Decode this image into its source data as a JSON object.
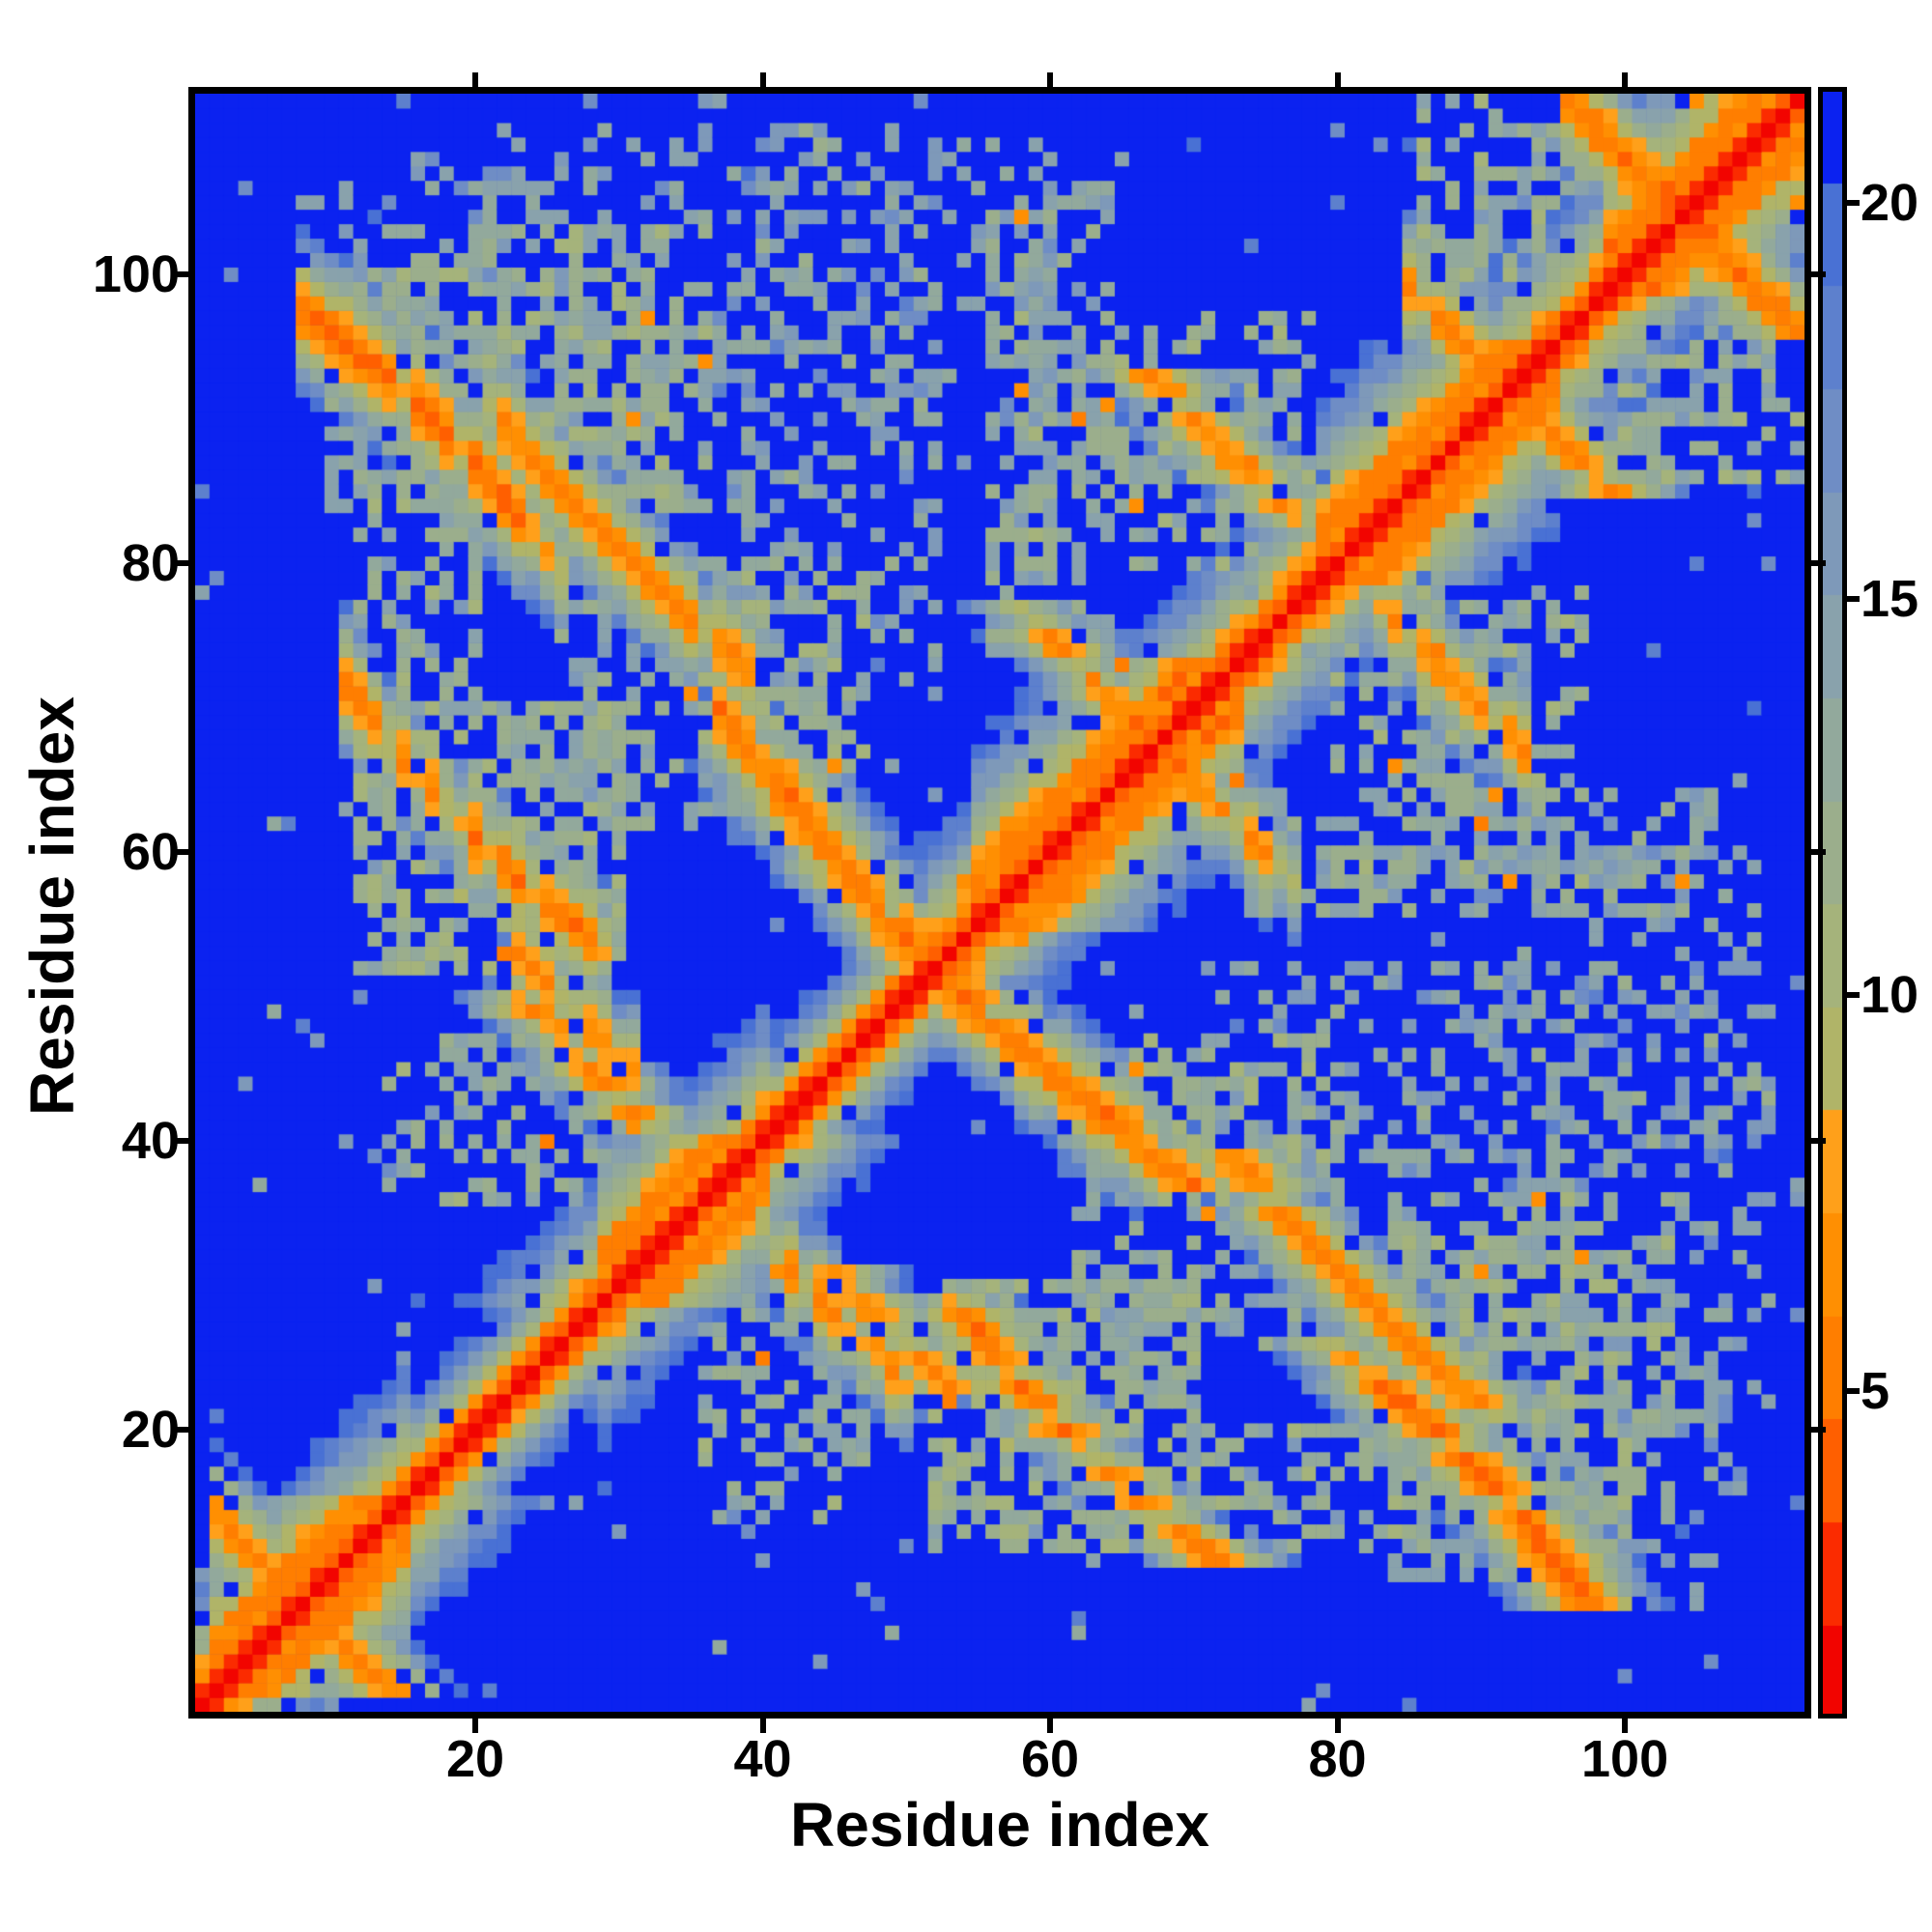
{
  "figure": {
    "background": "#ffffff",
    "frame_color": "#000000",
    "text_color": "#000000"
  },
  "chart_data": {
    "type": "heatmap",
    "title": "",
    "xlabel": "Residue index",
    "ylabel": "Residue index",
    "n_residues": 112,
    "axis_range": [
      1,
      112
    ],
    "x_ticks": [
      20,
      40,
      60,
      80,
      100
    ],
    "y_ticks": [
      20,
      40,
      60,
      80,
      100
    ],
    "grid": false,
    "legend": "colorbar-right",
    "colorbar": {
      "position": "right",
      "ticks": [
        5,
        10,
        15,
        20
      ],
      "vmin": 0.93,
      "vmax": 21.4
    },
    "palette": {
      "level_min": 0.75,
      "level_step": 1.3,
      "colors": [
        "#f20400",
        "#fb2b00",
        "#ff5f00",
        "#ff7e00",
        "#ff8f02",
        "#ffa01a",
        "#b0b468",
        "#a5b37b",
        "#9bae8c",
        "#92a99c",
        "#89a2ac",
        "#7e99b9",
        "#6f8dc5",
        "#5d80cd",
        "#4971d4",
        "#0b22f0"
      ],
      "background": "#0b22f0"
    },
    "matrix_description": "Symmetric 112x112 inter-residue distance map: red along the main diagonal (short distances), orange helical flanks and anti-diagonal hairpin arcs, olive/slate contact clouds, deep blue beyond cutoff.",
    "generator": {
      "cutoff": 22,
      "spread": 1.75,
      "noise": 1.5,
      "hole_p": 0.07,
      "dust_p": 0.02,
      "pop_p": 0.012,
      "chain_coil": [
        0.3,
        3.1,
        6.1,
        8.4,
        10.5,
        12.5,
        14.4,
        16.2,
        17.9,
        19.4,
        20.6,
        21.5,
        22.0
      ],
      "chain_helix": [
        0.3,
        3.1,
        5.6,
        5.3,
        6.3,
        8.7,
        10.2,
        11.9,
        13.5,
        15.0,
        16.4,
        17.8,
        19.0,
        20.2,
        21.2,
        21.9,
        22.2
      ],
      "chain_strand": [
        0.3,
        3.1,
        6.6,
        9.9,
        13.2,
        16.0,
        18.5,
        20.5,
        21.8,
        22.2
      ],
      "helices": [
        [
          2,
          15
        ],
        [
          29,
          40
        ],
        [
          55,
          73
        ],
        [
          79,
          95
        ],
        [
          99,
          112
        ]
      ],
      "strands": [
        [
          16,
          28
        ],
        [
          41,
          54
        ],
        [
          74,
          78
        ],
        [
          96,
          98
        ]
      ],
      "contacts": [
        {
          "i0": 2,
          "i1": 9,
          "sum": 16,
          "d": 5.5,
          "patch": 0.3,
          "curv": 0,
          "ic": 5
        },
        {
          "i0": 8,
          "i1": 26,
          "sum": 107,
          "d": 4.3,
          "patch": 0.15,
          "curv": -0.02,
          "ic": 17
        },
        {
          "i0": 11,
          "i1": 29,
          "sum": 81,
          "d": 5.0,
          "patch": 0.25,
          "curv": 0.02,
          "ic": 20
        },
        {
          "i0": 21,
          "i1": 39,
          "sum": 111,
          "d": 5.3,
          "patch": 0.3,
          "curv": 0.008,
          "ic": 30
        },
        {
          "i0": 37,
          "i1": 67,
          "sum": 104,
          "d": 4.8,
          "patch": 0.2,
          "curv": 0.012,
          "ic": 52
        },
        {
          "i0": 41,
          "i1": 50,
          "sum": 73,
          "d": 5.6,
          "patch": 0.45,
          "curv": 0,
          "ic": 45
        },
        {
          "i0": 23,
          "i1": 31,
          "sum": 76,
          "d": 5.8,
          "patch": 0.45,
          "curv": 0,
          "ic": 27
        },
        {
          "i0": 83,
          "i1": 93,
          "sum": 160,
          "d": 5.8,
          "patch": 0.4,
          "curv": 0,
          "ic": 88
        },
        {
          "i0": 68,
          "i1": 77,
          "sum": 135,
          "d": 6.0,
          "patch": 0.5,
          "curv": 0,
          "ic": 72
        },
        {
          "i0": 96,
          "i1": 110,
          "sum": 208,
          "d": 4.8,
          "patch": 0.2,
          "curv": 0,
          "ic": 103
        },
        {
          "i0": 85,
          "i1": 93,
          "sum": 184,
          "d": 5.2,
          "patch": 0.3,
          "curv": 0,
          "ic": 89
        }
      ],
      "blobs": [
        {
          "i0": 74,
          "i1": 106,
          "j0": 56,
          "j1": 64,
          "d": 13.5,
          "keep": 0.5
        },
        {
          "i0": 70,
          "i1": 108,
          "j0": 38,
          "j1": 52,
          "d": 14.5,
          "keep": 0.3
        },
        {
          "i0": 22,
          "i1": 60,
          "j0": 90,
          "j1": 110,
          "d": 14.5,
          "keep": 0.25
        },
        {
          "i0": 15,
          "i1": 34,
          "j0": 84,
          "j1": 103,
          "d": 12.5,
          "keep": 0.55
        },
        {
          "i0": 36,
          "i1": 47,
          "j0": 66,
          "j1": 80,
          "d": 12.5,
          "keep": 0.5
        },
        {
          "i0": 58,
          "i1": 78,
          "j0": 80,
          "j1": 97,
          "d": 12.8,
          "keep": 0.5
        },
        {
          "i0": 12,
          "i1": 30,
          "j0": 52,
          "j1": 70,
          "d": 12.2,
          "keep": 0.55
        },
        {
          "i0": 36,
          "i1": 47,
          "j0": 14,
          "j1": 30,
          "d": 13.0,
          "keep": 0.5
        },
        {
          "i0": 84,
          "i1": 100,
          "j0": 10,
          "j1": 22,
          "d": 13.0,
          "keep": 0.5
        },
        {
          "i0": 96,
          "i1": 112,
          "j0": 86,
          "j1": 100,
          "d": 13.0,
          "keep": 0.5
        },
        {
          "i0": 62,
          "i1": 80,
          "j0": 26,
          "j1": 40,
          "d": 13.5,
          "keep": 0.4
        },
        {
          "i0": 12,
          "i1": 20,
          "j0": 70,
          "j1": 84,
          "d": 13.0,
          "keep": 0.45
        },
        {
          "i0": 8,
          "i1": 22,
          "j0": 94,
          "j1": 108,
          "d": 15.0,
          "keep": 0.2
        },
        {
          "i0": 84,
          "i1": 96,
          "j0": 26,
          "j1": 36,
          "d": 12.8,
          "keep": 0.5
        }
      ],
      "dots": [
        [
          58,
          92
        ],
        [
          30,
          81
        ],
        [
          90,
          62
        ],
        [
          72,
          63
        ],
        [
          73,
          65
        ],
        [
          87,
          74
        ],
        [
          44,
          29
        ],
        [
          26,
          48
        ],
        [
          66,
          84
        ],
        [
          36,
          94
        ],
        [
          53,
          22
        ],
        [
          90,
          31
        ],
        [
          17,
          90
        ],
        [
          40,
          25
        ]
      ]
    }
  }
}
